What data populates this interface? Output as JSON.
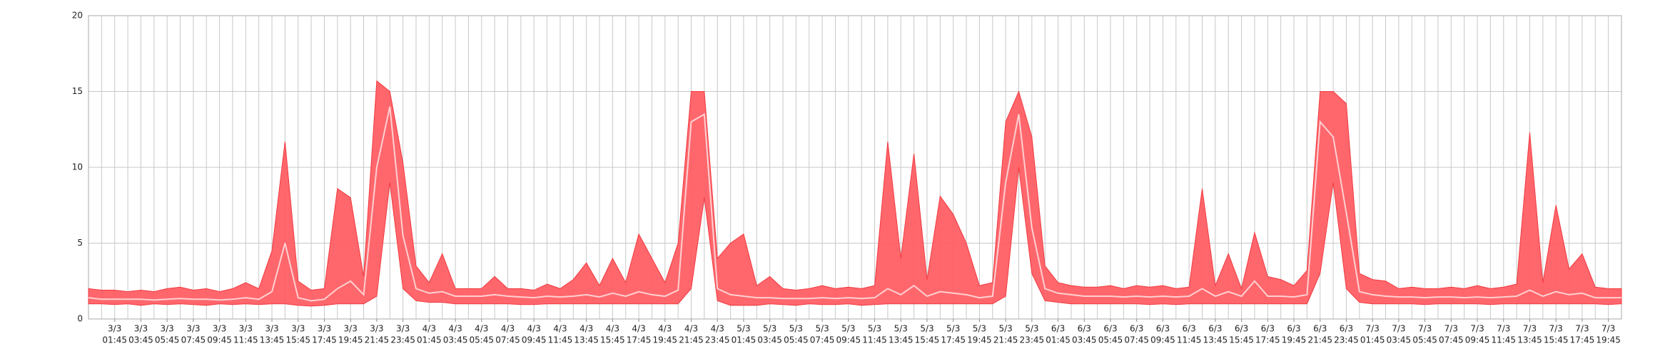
{
  "chart_data": {
    "type": "band",
    "ylim": [
      0,
      20
    ],
    "yticks": [
      0,
      5,
      10,
      15,
      20
    ],
    "grid": true,
    "categories": [
      null,
      null,
      [
        "3/3",
        "01:45"
      ],
      null,
      [
        "3/3",
        "03:45"
      ],
      null,
      [
        "3/3",
        "05:45"
      ],
      null,
      [
        "3/3",
        "07:45"
      ],
      null,
      [
        "3/3",
        "09:45"
      ],
      null,
      [
        "3/3",
        "11:45"
      ],
      null,
      [
        "3/3",
        "13:45"
      ],
      null,
      [
        "3/3",
        "15:45"
      ],
      null,
      [
        "3/3",
        "17:45"
      ],
      null,
      [
        "3/3",
        "19:45"
      ],
      null,
      [
        "3/3",
        "21:45"
      ],
      null,
      [
        "3/3",
        "23:45"
      ],
      null,
      [
        "4/3",
        "01:45"
      ],
      null,
      [
        "4/3",
        "03:45"
      ],
      null,
      [
        "4/3",
        "05:45"
      ],
      null,
      [
        "4/3",
        "07:45"
      ],
      null,
      [
        "4/3",
        "09:45"
      ],
      null,
      [
        "4/3",
        "11:45"
      ],
      null,
      [
        "4/3",
        "13:45"
      ],
      null,
      [
        "4/3",
        "15:45"
      ],
      null,
      [
        "4/3",
        "17:45"
      ],
      null,
      [
        "4/3",
        "19:45"
      ],
      null,
      [
        "4/3",
        "21:45"
      ],
      null,
      [
        "4/3",
        "23:45"
      ],
      null,
      [
        "5/3",
        "01:45"
      ],
      null,
      [
        "5/3",
        "03:45"
      ],
      null,
      [
        "5/3",
        "05:45"
      ],
      null,
      [
        "5/3",
        "07:45"
      ],
      null,
      [
        "5/3",
        "09:45"
      ],
      null,
      [
        "5/3",
        "11:45"
      ],
      null,
      [
        "5/3",
        "13:45"
      ],
      null,
      [
        "5/3",
        "15:45"
      ],
      null,
      [
        "5/3",
        "17:45"
      ],
      null,
      [
        "5/3",
        "19:45"
      ],
      null,
      [
        "5/3",
        "21:45"
      ],
      null,
      [
        "5/3",
        "23:45"
      ],
      null,
      [
        "6/3",
        "01:45"
      ],
      null,
      [
        "6/3",
        "03:45"
      ],
      null,
      [
        "6/3",
        "05:45"
      ],
      null,
      [
        "6/3",
        "07:45"
      ],
      null,
      [
        "6/3",
        "09:45"
      ],
      null,
      [
        "6/3",
        "11:45"
      ],
      null,
      [
        "6/3",
        "13:45"
      ],
      null,
      [
        "6/3",
        "15:45"
      ],
      null,
      [
        "6/3",
        "17:45"
      ],
      null,
      [
        "6/3",
        "19:45"
      ],
      null,
      [
        "6/3",
        "21:45"
      ],
      null,
      [
        "6/3",
        "23:45"
      ],
      null,
      [
        "7/3",
        "01:45"
      ],
      null,
      [
        "7/3",
        "03:45"
      ],
      null,
      [
        "7/3",
        "05:45"
      ],
      null,
      [
        "7/3",
        "07:45"
      ],
      null,
      [
        "7/3",
        "09:45"
      ],
      null,
      [
        "7/3",
        "11:45"
      ],
      null,
      [
        "7/3",
        "13:45"
      ],
      null,
      [
        "7/3",
        "15:45"
      ],
      null,
      [
        "7/3",
        "17:45"
      ],
      null,
      [
        "7/3",
        "19:45"
      ],
      null
    ],
    "band": {
      "color": "#ff5f64",
      "high": [
        2.0,
        1.9,
        1.9,
        1.8,
        1.9,
        1.8,
        2.0,
        2.1,
        1.9,
        2.0,
        1.8,
        2.0,
        2.4,
        2.0,
        4.5,
        11.7,
        2.5,
        1.9,
        2.0,
        8.6,
        8.0,
        2.8,
        15.7,
        15.0,
        10.3,
        3.5,
        2.4,
        4.3,
        2.0,
        2.0,
        2.0,
        2.8,
        2.0,
        2.0,
        1.9,
        2.3,
        2.0,
        2.6,
        3.7,
        2.2,
        4.0,
        2.4,
        5.6,
        4.0,
        2.4,
        5.0,
        15.0,
        15.0,
        4.0,
        5.0,
        5.6,
        2.2,
        2.8,
        2.0,
        1.9,
        2.0,
        2.2,
        2.0,
        2.1,
        2.0,
        2.2,
        11.7,
        4.0,
        10.9,
        2.6,
        8.1,
        6.9,
        5.0,
        2.2,
        2.4,
        13.0,
        15.0,
        12.0,
        3.5,
        2.4,
        2.2,
        2.1,
        2.1,
        2.2,
        2.0,
        2.2,
        2.1,
        2.2,
        2.0,
        2.1,
        8.6,
        2.2,
        4.3,
        2.0,
        5.7,
        2.8,
        2.6,
        2.2,
        3.2,
        15.0,
        15.0,
        14.2,
        3.0,
        2.6,
        2.5,
        2.0,
        2.1,
        2.0,
        2.0,
        2.1,
        2.0,
        2.2,
        2.0,
        2.1,
        2.3,
        12.3,
        2.4,
        7.5,
        3.3,
        4.3,
        2.1,
        2.0,
        2.0
      ],
      "low": [
        1.0,
        1.0,
        0.95,
        1.0,
        0.9,
        1.0,
        0.95,
        1.0,
        0.95,
        0.9,
        1.0,
        0.95,
        1.0,
        0.95,
        1.0,
        1.0,
        0.9,
        0.85,
        0.9,
        1.0,
        1.0,
        1.0,
        1.5,
        9.0,
        2.0,
        1.2,
        1.1,
        1.1,
        1.0,
        1.0,
        1.0,
        1.0,
        1.0,
        0.95,
        0.95,
        1.0,
        1.0,
        1.0,
        1.0,
        1.0,
        1.0,
        1.0,
        1.0,
        1.0,
        1.0,
        1.0,
        2.0,
        8.0,
        1.2,
        0.9,
        0.9,
        0.9,
        1.0,
        0.95,
        0.9,
        1.0,
        0.95,
        0.95,
        1.0,
        0.9,
        0.95,
        1.0,
        1.0,
        1.0,
        1.0,
        1.0,
        1.0,
        1.0,
        1.0,
        1.0,
        1.5,
        10.0,
        3.0,
        1.2,
        1.1,
        1.0,
        1.0,
        1.0,
        1.0,
        1.0,
        1.0,
        0.95,
        1.0,
        0.95,
        1.0,
        1.0,
        1.0,
        1.0,
        1.0,
        1.0,
        1.0,
        1.0,
        1.0,
        1.0,
        3.0,
        9.0,
        2.0,
        1.1,
        1.0,
        1.0,
        1.0,
        1.0,
        0.95,
        1.0,
        1.0,
        1.0,
        1.0,
        0.95,
        1.0,
        1.0,
        1.0,
        1.0,
        1.0,
        1.0,
        1.0,
        1.0,
        0.95,
        1.0
      ]
    },
    "series": [
      {
        "color": "#ffd0d2",
        "values": [
          1.4,
          1.3,
          1.3,
          1.3,
          1.3,
          1.25,
          1.3,
          1.35,
          1.3,
          1.3,
          1.25,
          1.3,
          1.4,
          1.3,
          1.8,
          5.0,
          1.4,
          1.2,
          1.3,
          2.0,
          2.5,
          1.6,
          10.0,
          14.0,
          5.5,
          2.0,
          1.7,
          1.8,
          1.5,
          1.5,
          1.5,
          1.6,
          1.5,
          1.45,
          1.4,
          1.5,
          1.45,
          1.5,
          1.6,
          1.45,
          1.7,
          1.5,
          1.8,
          1.6,
          1.5,
          1.9,
          13.0,
          13.5,
          2.0,
          1.6,
          1.5,
          1.4,
          1.4,
          1.35,
          1.35,
          1.35,
          1.4,
          1.35,
          1.4,
          1.35,
          1.4,
          2.0,
          1.6,
          2.2,
          1.5,
          1.8,
          1.7,
          1.6,
          1.4,
          1.5,
          9.0,
          13.5,
          6.0,
          2.0,
          1.7,
          1.6,
          1.5,
          1.5,
          1.5,
          1.45,
          1.5,
          1.45,
          1.5,
          1.45,
          1.5,
          2.0,
          1.5,
          1.8,
          1.5,
          2.5,
          1.5,
          1.5,
          1.45,
          1.6,
          13.0,
          12.0,
          7.0,
          1.8,
          1.6,
          1.5,
          1.45,
          1.45,
          1.4,
          1.45,
          1.45,
          1.4,
          1.45,
          1.4,
          1.45,
          1.5,
          1.9,
          1.5,
          1.8,
          1.6,
          1.7,
          1.4,
          1.4,
          1.4
        ]
      }
    ]
  }
}
